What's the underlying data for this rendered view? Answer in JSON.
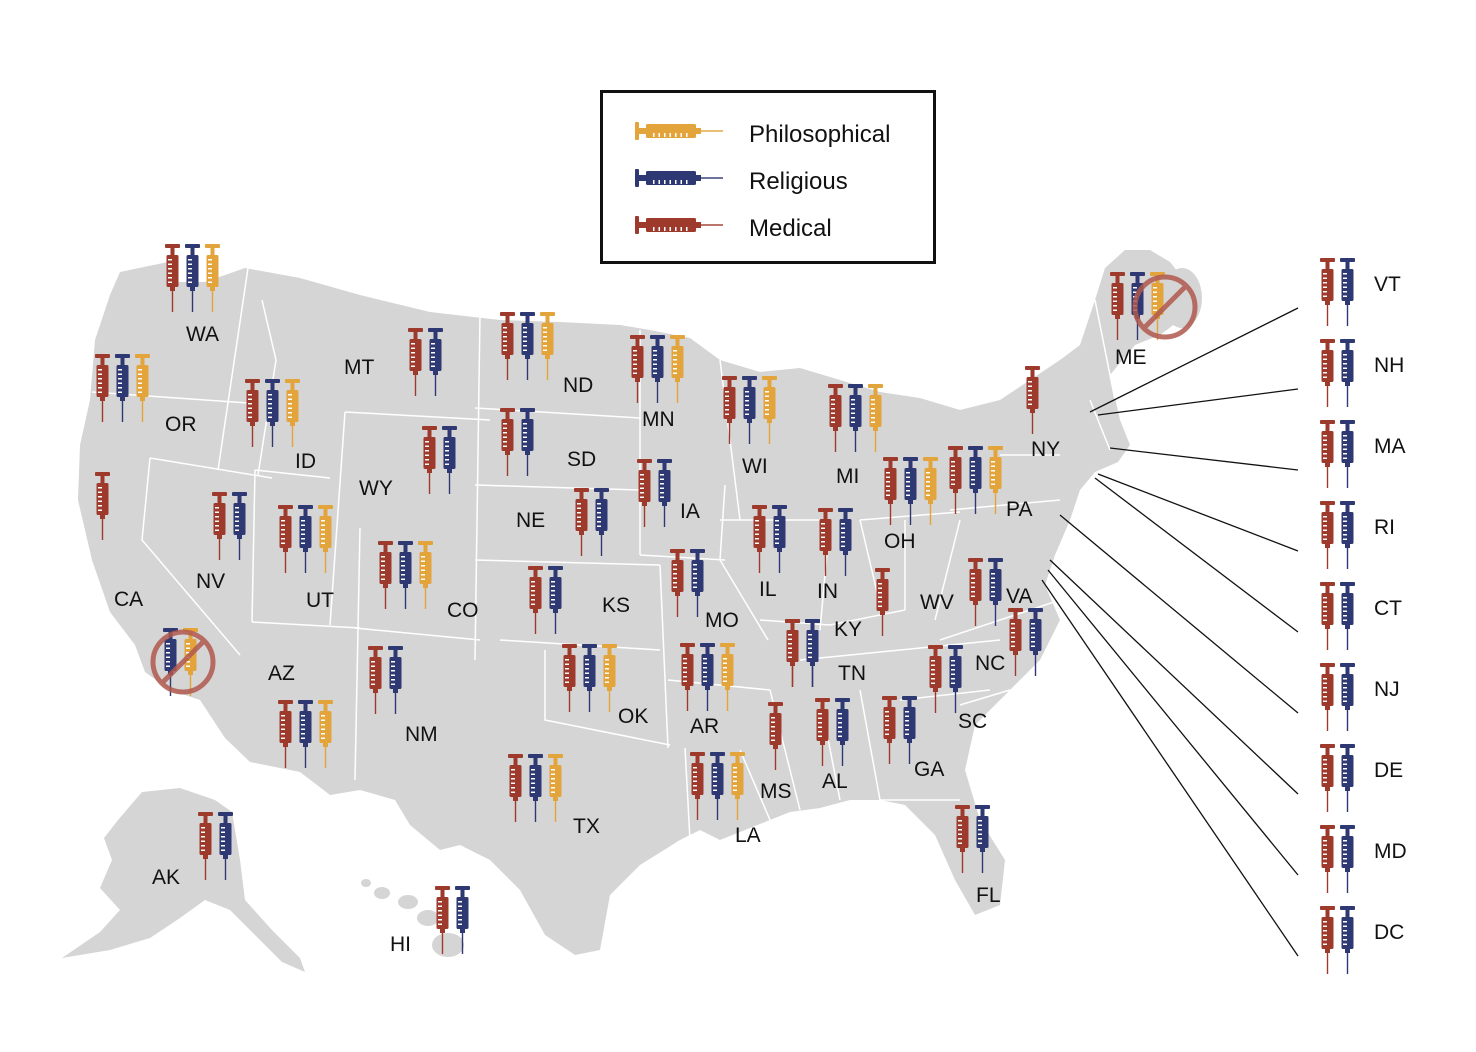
{
  "colors": {
    "land": "#d5d5d5",
    "border": "#ffffff",
    "philosophical": "#e4a43c",
    "religious": "#2e3872",
    "medical": "#9e3a2c",
    "ban": "#b0594e",
    "leader": "#111111"
  },
  "legend": {
    "items": [
      {
        "label": "Philosophical",
        "type": "philosophical",
        "icon": "syringe-icon"
      },
      {
        "label": "Religious",
        "type": "religious",
        "icon": "syringe-icon"
      },
      {
        "label": "Medical",
        "type": "medical",
        "icon": "syringe-icon"
      }
    ]
  },
  "states": [
    {
      "abbr": "WA",
      "exemptions": [
        "medical",
        "religious",
        "philosophical"
      ]
    },
    {
      "abbr": "OR",
      "exemptions": [
        "medical",
        "religious",
        "philosophical"
      ]
    },
    {
      "abbr": "CA",
      "exemptions": [
        "medical"
      ],
      "banned": true
    },
    {
      "abbr": "ID",
      "exemptions": [
        "medical",
        "religious",
        "philosophical"
      ]
    },
    {
      "abbr": "NV",
      "exemptions": [
        "medical",
        "religious"
      ]
    },
    {
      "abbr": "MT",
      "exemptions": [
        "medical",
        "religious"
      ]
    },
    {
      "abbr": "WY",
      "exemptions": [
        "medical",
        "religious"
      ]
    },
    {
      "abbr": "UT",
      "exemptions": [
        "medical",
        "religious",
        "philosophical"
      ]
    },
    {
      "abbr": "AZ",
      "exemptions": [
        "medical",
        "religious",
        "philosophical"
      ]
    },
    {
      "abbr": "CO",
      "exemptions": [
        "medical",
        "religious",
        "philosophical"
      ]
    },
    {
      "abbr": "NM",
      "exemptions": [
        "medical",
        "religious"
      ]
    },
    {
      "abbr": "ND",
      "exemptions": [
        "medical",
        "religious",
        "philosophical"
      ]
    },
    {
      "abbr": "SD",
      "exemptions": [
        "medical",
        "religious"
      ]
    },
    {
      "abbr": "NE",
      "exemptions": [
        "medical",
        "religious"
      ]
    },
    {
      "abbr": "KS",
      "exemptions": [
        "medical",
        "religious"
      ]
    },
    {
      "abbr": "OK",
      "exemptions": [
        "medical",
        "religious",
        "philosophical"
      ]
    },
    {
      "abbr": "TX",
      "exemptions": [
        "medical",
        "religious",
        "philosophical"
      ]
    },
    {
      "abbr": "MN",
      "exemptions": [
        "medical",
        "religious",
        "philosophical"
      ]
    },
    {
      "abbr": "IA",
      "exemptions": [
        "medical",
        "religious"
      ]
    },
    {
      "abbr": "MO",
      "exemptions": [
        "medical",
        "religious"
      ]
    },
    {
      "abbr": "AR",
      "exemptions": [
        "medical",
        "religious",
        "philosophical"
      ]
    },
    {
      "abbr": "LA",
      "exemptions": [
        "medical",
        "religious",
        "philosophical"
      ]
    },
    {
      "abbr": "WI",
      "exemptions": [
        "medical",
        "religious",
        "philosophical"
      ]
    },
    {
      "abbr": "IL",
      "exemptions": [
        "medical",
        "religious"
      ]
    },
    {
      "abbr": "MI",
      "exemptions": [
        "medical",
        "religious",
        "philosophical"
      ]
    },
    {
      "abbr": "IN",
      "exemptions": [
        "medical",
        "religious"
      ]
    },
    {
      "abbr": "OH",
      "exemptions": [
        "medical",
        "religious",
        "philosophical"
      ]
    },
    {
      "abbr": "KY",
      "exemptions": [
        "medical",
        "religious"
      ]
    },
    {
      "abbr": "TN",
      "exemptions": [
        "medical",
        "religious"
      ]
    },
    {
      "abbr": "MS",
      "exemptions": [
        "medical"
      ]
    },
    {
      "abbr": "AL",
      "exemptions": [
        "medical",
        "religious"
      ]
    },
    {
      "abbr": "GA",
      "exemptions": [
        "medical",
        "religious"
      ]
    },
    {
      "abbr": "FL",
      "exemptions": [
        "medical",
        "religious"
      ]
    },
    {
      "abbr": "SC",
      "exemptions": [
        "medical",
        "religious"
      ]
    },
    {
      "abbr": "NC",
      "exemptions": [
        "medical",
        "religious"
      ]
    },
    {
      "abbr": "VA",
      "exemptions": [
        "medical",
        "religious"
      ]
    },
    {
      "abbr": "WV",
      "exemptions": [
        "medical"
      ]
    },
    {
      "abbr": "PA",
      "exemptions": [
        "medical",
        "religious",
        "philosophical"
      ]
    },
    {
      "abbr": "NY",
      "exemptions": [
        "medical"
      ]
    },
    {
      "abbr": "ME",
      "exemptions": [
        "medical",
        "religious",
        "philosophical"
      ],
      "banned": true
    },
    {
      "abbr": "AK",
      "exemptions": [
        "medical",
        "religious"
      ]
    },
    {
      "abbr": "HI",
      "exemptions": [
        "medical",
        "religious"
      ]
    }
  ],
  "callouts": [
    {
      "abbr": "VT",
      "exemptions": [
        "medical",
        "religious"
      ]
    },
    {
      "abbr": "NH",
      "exemptions": [
        "medical",
        "religious"
      ]
    },
    {
      "abbr": "MA",
      "exemptions": [
        "medical",
        "religious"
      ]
    },
    {
      "abbr": "RI",
      "exemptions": [
        "medical",
        "religious"
      ]
    },
    {
      "abbr": "CT",
      "exemptions": [
        "medical",
        "religious"
      ]
    },
    {
      "abbr": "NJ",
      "exemptions": [
        "medical",
        "religious"
      ]
    },
    {
      "abbr": "DE",
      "exemptions": [
        "medical",
        "religious"
      ]
    },
    {
      "abbr": "MD",
      "exemptions": [
        "medical",
        "religious"
      ]
    },
    {
      "abbr": "DC",
      "exemptions": [
        "medical",
        "religious"
      ]
    }
  ]
}
